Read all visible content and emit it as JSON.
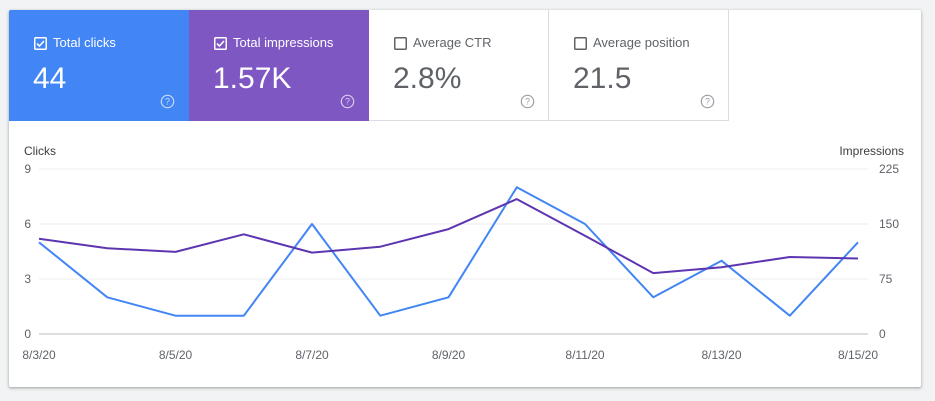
{
  "metrics": [
    {
      "label": "Total clicks",
      "value": "44",
      "selected": true,
      "color": "#4285f4"
    },
    {
      "label": "Total impressions",
      "value": "1.57K",
      "selected": true,
      "color": "#7e57c2"
    },
    {
      "label": "Average CTR",
      "value": "2.8%",
      "selected": false
    },
    {
      "label": "Average position",
      "value": "21.5",
      "selected": false
    }
  ],
  "help_icon": "help-circle-icon",
  "chart_data": {
    "type": "line",
    "x": [
      "8/3/20",
      "8/4/20",
      "8/5/20",
      "8/6/20",
      "8/7/20",
      "8/8/20",
      "8/9/20",
      "8/10/20",
      "8/11/20",
      "8/12/20",
      "8/13/20",
      "8/14/20",
      "8/15/20"
    ],
    "x_tick_labels": [
      "8/3/20",
      "8/5/20",
      "8/7/20",
      "8/9/20",
      "8/11/20",
      "8/13/20",
      "8/15/20"
    ],
    "left_axis": {
      "label": "Clicks",
      "ylim": [
        0,
        9
      ],
      "ticks": [
        "0",
        "3",
        "6",
        "9"
      ]
    },
    "right_axis": {
      "label": "Impressions",
      "ylim": [
        0,
        225
      ],
      "ticks": [
        "0",
        "75",
        "150",
        "225"
      ]
    },
    "grid": true,
    "series": [
      {
        "name": "Total clicks",
        "axis": "left",
        "color": "#4285f4",
        "values": [
          5,
          2,
          1,
          1,
          6,
          1,
          2,
          8,
          6,
          2,
          4,
          1,
          5
        ]
      },
      {
        "name": "Total impressions",
        "axis": "right",
        "color": "#5e35b1",
        "values": [
          130,
          117,
          112,
          136,
          111,
          119,
          143,
          184,
          134,
          83,
          91,
          105,
          103
        ]
      }
    ]
  }
}
